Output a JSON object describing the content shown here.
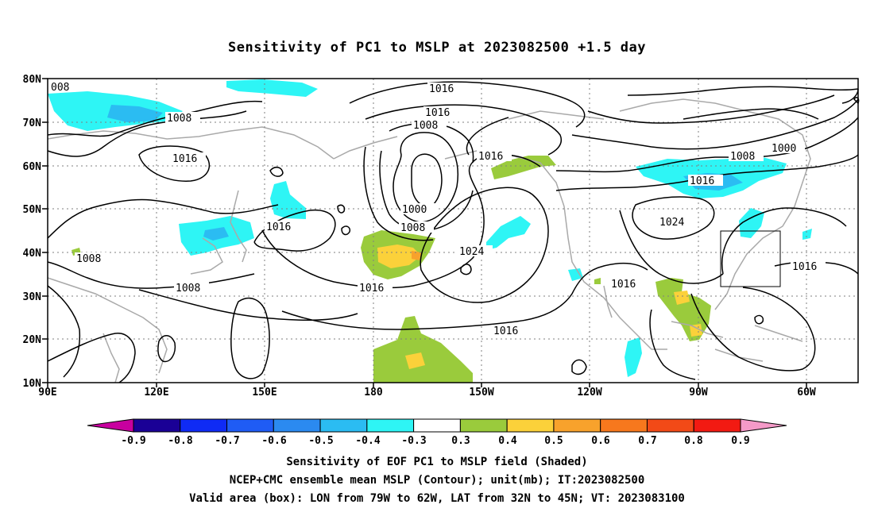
{
  "title": "Sensitivity of PC1 to MSLP at 2023082500 +1.5 day",
  "map": {
    "lat_labels": [
      "80N",
      "70N",
      "60N",
      "50N",
      "40N",
      "30N",
      "20N",
      "10N"
    ],
    "lon_labels": [
      "90E",
      "120E",
      "150E",
      "180",
      "150W",
      "120W",
      "90W",
      "60W"
    ],
    "contour_labels": [
      "008",
      "1008",
      "1016",
      "1016",
      "1016",
      "1008",
      "1000",
      "1008",
      "1016",
      "1016",
      "1008",
      "1008",
      "1024",
      "1016",
      "1016",
      "1008",
      "1000",
      "1016",
      "1024",
      "1016"
    ],
    "valid_box": {
      "lon_from": "79W",
      "lon_to": "62W",
      "lat_from": "32N",
      "lat_to": "45N"
    }
  },
  "colorbar": {
    "labels": [
      "-0.9",
      "-0.8",
      "-0.7",
      "-0.6",
      "-0.5",
      "-0.4",
      "-0.3",
      "0.3",
      "0.4",
      "0.5",
      "0.6",
      "0.7",
      "0.8",
      "0.9"
    ],
    "colors": [
      "#1a0096",
      "#0f2bf5",
      "#1f5cf5",
      "#2b8af0",
      "#2bbcf2",
      "#2ef5f5",
      "#ffffff",
      "#9acb3c",
      "#fbd13a",
      "#f8a22c",
      "#f7781d",
      "#f24a17",
      "#f21a12"
    ],
    "low_end_color": "#c8009f",
    "high_end_color": "#f59ac8"
  },
  "captions": {
    "line1": "Sensitivity of EOF PC1 to MSLP field (Shaded)",
    "line2": "NCEP+CMC ensemble mean MSLP (Contour); unit(mb); IT:2023082500",
    "line3": "Valid area (box): LON from 79W to 62W, LAT from 32N to 45N; VT: 2023083100"
  }
}
